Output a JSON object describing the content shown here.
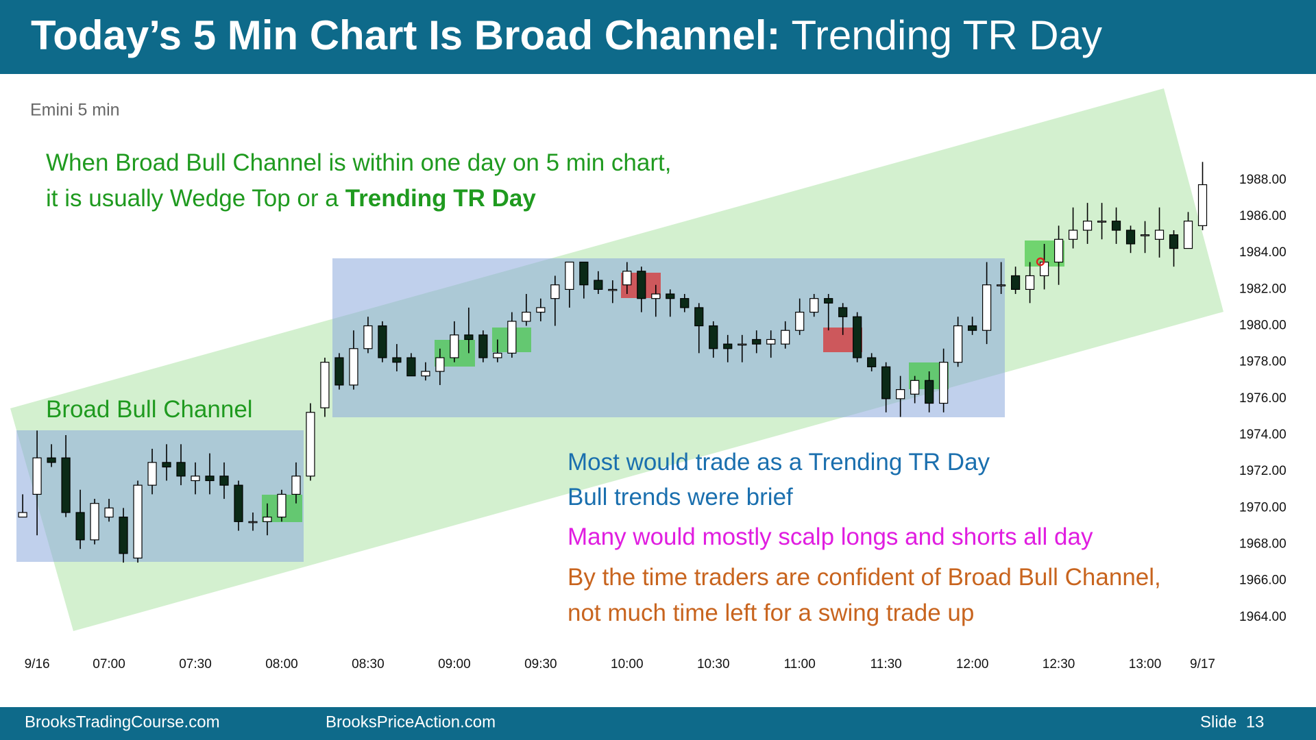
{
  "header": {
    "title_bold": "Today’s 5 Min Chart Is Broad Channel:",
    "title_regular": "Trending TR Day"
  },
  "footer": {
    "left": "BrooksTradingCourse.com",
    "center": "BrooksPriceAction.com",
    "slide": "Slide  13"
  },
  "chart_data": {
    "type": "candlestick",
    "title": "Emini 5 min",
    "open": [
      1969.5,
      1970.75,
      1972.75,
      1972.75,
      1969.75,
      1968.25,
      1969.5,
      1969.5,
      1967.25,
      1971.25,
      1972.5,
      1972.5,
      1971.5,
      1971.75,
      1971.75,
      1971.25,
      1969.25,
      1969.25,
      1969.5,
      1970.75,
      1971.75,
      1975.5,
      1978.25,
      1976.75,
      1978.75,
      1980,
      1978.25,
      1978.25,
      1977.25,
      1977.5,
      1978.25,
      1979.5,
      1979.5,
      1978.25,
      1978.5,
      1980.25,
      1980.75,
      1981.5,
      1982,
      1983.5,
      1982.5,
      1982,
      1982.25,
      1983,
      1981.5,
      1981.75,
      1981.5,
      1981,
      1980,
      1979,
      1979,
      1979.25,
      1979,
      1979,
      1979.75,
      1980.75,
      1981.5,
      1981,
      1980.5,
      1978.25,
      1977.75,
      1976,
      1976.25,
      1977,
      1975.75,
      1978,
      1980,
      1979.75,
      1982.25,
      1982.75,
      1982,
      1982.75,
      1983.5,
      1984.75,
      1985.25,
      1985.75,
      1985.75,
      1985.25,
      1985,
      1984.75,
      1985,
      1984.25,
      1985.5
    ],
    "high": [
      1970.75,
      1974.25,
      1973.5,
      1974,
      1971,
      1970.5,
      1970.5,
      1970,
      1971.5,
      1973.25,
      1973.5,
      1973.5,
      1972.5,
      1973,
      1972.5,
      1971.5,
      1969.75,
      1970.25,
      1971,
      1972.5,
      1975.75,
      1978.25,
      1978.5,
      1979.75,
      1980.5,
      1980.25,
      1979,
      1978.5,
      1978,
      1978.75,
      1980.25,
      1981,
      1979.75,
      1979.25,
      1980.75,
      1981.75,
      1981.5,
      1982.75,
      1983.5,
      1983.5,
      1983,
      1982.5,
      1983.5,
      1983.25,
      1982.25,
      1982,
      1981.75,
      1981.25,
      1980.25,
      1979.5,
      1979.5,
      1979.75,
      1979.75,
      1980.25,
      1981.5,
      1981.75,
      1981.75,
      1981.25,
      1980.75,
      1978.5,
      1978,
      1977.25,
      1977.25,
      1977.5,
      1978.75,
      1980.5,
      1980.5,
      1983.5,
      1983.5,
      1983.25,
      1983.5,
      1984.5,
      1985.5,
      1986.5,
      1986.75,
      1986.75,
      1986.5,
      1985.5,
      1985.75,
      1986.5,
      1985.25,
      1986.25,
      1989
    ],
    "low": [
      1969.5,
      1968.5,
      1972.25,
      1969.5,
      1967.75,
      1968,
      1969.25,
      1967,
      1967,
      1970.75,
      1971.5,
      1971.25,
      1970.75,
      1970.75,
      1970.5,
      1968.75,
      1968.75,
      1968.5,
      1969.25,
      1970.25,
      1971.5,
      1975,
      1976.5,
      1976.5,
      1978.5,
      1978,
      1977.5,
      1977.25,
      1977,
      1976.75,
      1978,
      1978.5,
      1978,
      1978,
      1978.25,
      1980,
      1980.25,
      1980,
      1981,
      1981.5,
      1981.75,
      1981.25,
      1981.75,
      1980.75,
      1980.5,
      1980.5,
      1980.75,
      1978.5,
      1978.25,
      1978,
      1978,
      1978.5,
      1978.25,
      1978.75,
      1979.5,
      1980.5,
      1979.75,
      1979.5,
      1978,
      1977.5,
      1975.25,
      1975,
      1975.75,
      1975.25,
      1975.25,
      1977.75,
      1979.5,
      1979,
      1981.75,
      1981.75,
      1981.25,
      1982,
      1982.25,
      1984.25,
      1984.5,
      1984.75,
      1984.5,
      1984,
      1984,
      1983.75,
      1983.25,
      1984.25,
      1985.25
    ],
    "close": [
      1969.75,
      1972.75,
      1972.5,
      1969.75,
      1968.25,
      1970.25,
      1970,
      1967.5,
      1971.25,
      1972.5,
      1972.25,
      1971.75,
      1971.75,
      1971.5,
      1971.25,
      1969.25,
      1969.25,
      1969.5,
      1970.75,
      1971.75,
      1975.25,
      1978,
      1976.75,
      1978.75,
      1980,
      1978.25,
      1978,
      1977.25,
      1977.5,
      1978.25,
      1979.5,
      1979.25,
      1978.25,
      1978.5,
      1980.25,
      1980.75,
      1981,
      1982.25,
      1983.5,
      1982.25,
      1982,
      1982,
      1983,
      1981.5,
      1981.75,
      1981.5,
      1981,
      1980,
      1978.75,
      1978.75,
      1979,
      1979,
      1979.25,
      1979.75,
      1980.75,
      1981.5,
      1981.25,
      1980.5,
      1978.25,
      1977.75,
      1976,
      1976.5,
      1977,
      1975.75,
      1978,
      1980,
      1979.75,
      1982.25,
      1982.25,
      1982,
      1982.75,
      1983.5,
      1984.75,
      1985.25,
      1985.75,
      1985.75,
      1985.25,
      1984.5,
      1985,
      1985.25,
      1984.25,
      1985.75,
      1987.75
    ],
    "up_color": "#ffffff",
    "down_color": "#0b2a17",
    "xlim": [
      -0.5,
      83.5
    ],
    "xticks": [
      {
        "value": 1,
        "label": "9/16"
      },
      {
        "value": 6,
        "label": "07:00"
      },
      {
        "value": 12,
        "label": "07:30"
      },
      {
        "value": 18,
        "label": "08:00"
      },
      {
        "value": 24,
        "label": "08:30"
      },
      {
        "value": 30,
        "label": "09:00"
      },
      {
        "value": 36,
        "label": "09:30"
      },
      {
        "value": 42,
        "label": "10:00"
      },
      {
        "value": 48,
        "label": "10:30"
      },
      {
        "value": 54,
        "label": "11:00"
      },
      {
        "value": 60,
        "label": "11:30"
      },
      {
        "value": 66,
        "label": "12:00"
      },
      {
        "value": 72,
        "label": "12:30"
      },
      {
        "value": 78,
        "label": "13:00"
      },
      {
        "value": 82,
        "label": "9/17"
      }
    ],
    "ylim": [
      1962,
      1993
    ],
    "yticks": [
      {
        "value": 1988,
        "label": "1988.00"
      },
      {
        "value": 1986,
        "label": "1986.00"
      },
      {
        "value": 1984,
        "label": "1984.00"
      },
      {
        "value": 1982,
        "label": "1982.00"
      },
      {
        "value": 1980,
        "label": "1980.00"
      },
      {
        "value": 1978,
        "label": "1978.00"
      },
      {
        "value": 1976,
        "label": "1976.00"
      },
      {
        "value": 1974,
        "label": "1974.00"
      },
      {
        "value": 1972,
        "label": "1972.00"
      },
      {
        "value": 1970,
        "label": "1970.00"
      },
      {
        "value": 1968,
        "label": "1968.00"
      },
      {
        "value": 1966,
        "label": "1966.00"
      },
      {
        "value": 1964,
        "label": "1964.00"
      }
    ],
    "annotations": [
      {
        "color": "#1f9a1f",
        "lines": [
          [
            {
              "text": "When Broad Bull Channel is within one day on 5 min chart,",
              "bold": false
            }
          ],
          [
            {
              "text": "it is usually Wedge Top or a",
              "bold": false
            },
            {
              "text": "Trending TR Day",
              "bold": true
            }
          ]
        ]
      },
      {
        "color": "#1f9a1f",
        "lines": [
          [
            {
              "text": "Broad Bull Channel",
              "bold": false
            }
          ]
        ]
      },
      {
        "color": "#1a6fae",
        "lines": [
          [
            {
              "text": "Most would trade as a Trending TR Day",
              "bold": false
            }
          ],
          [
            {
              "text": "Bull trends were brief",
              "bold": false
            }
          ]
        ]
      },
      {
        "color": "#e01de0",
        "lines": [
          [
            {
              "text": "Many would mostly scalp longs and shorts all day",
              "bold": false
            }
          ]
        ]
      },
      {
        "color": "#c8641e",
        "lines": [
          [
            {
              "text": "By the time traders are confident of Broad Bull Channel,",
              "bold": false
            }
          ],
          [
            {
              "text": "not much time left for a swing trade up",
              "bold": false
            }
          ]
        ]
      }
    ]
  }
}
